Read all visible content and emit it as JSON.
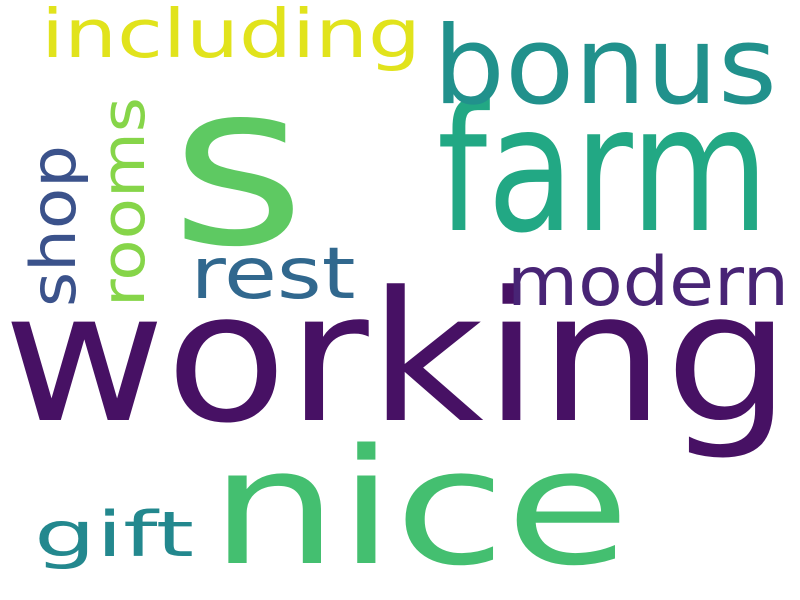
{
  "words": [
    {
      "text": "s",
      "color": "#5ec962"
    },
    {
      "text": "farm",
      "color": "#22a884"
    },
    {
      "text": "bonus",
      "color": "#21918c"
    },
    {
      "text": "including",
      "color": "#e1e31c"
    },
    {
      "text": "working",
      "color": "#471164"
    },
    {
      "text": "nice",
      "color": "#44bf70"
    },
    {
      "text": "modern",
      "color": "#482475"
    },
    {
      "text": "rest",
      "color": "#31688e"
    },
    {
      "text": "rooms",
      "color": "#86d549"
    },
    {
      "text": "shop",
      "color": "#3b528b"
    },
    {
      "text": "gift",
      "color": "#23888e"
    }
  ]
}
